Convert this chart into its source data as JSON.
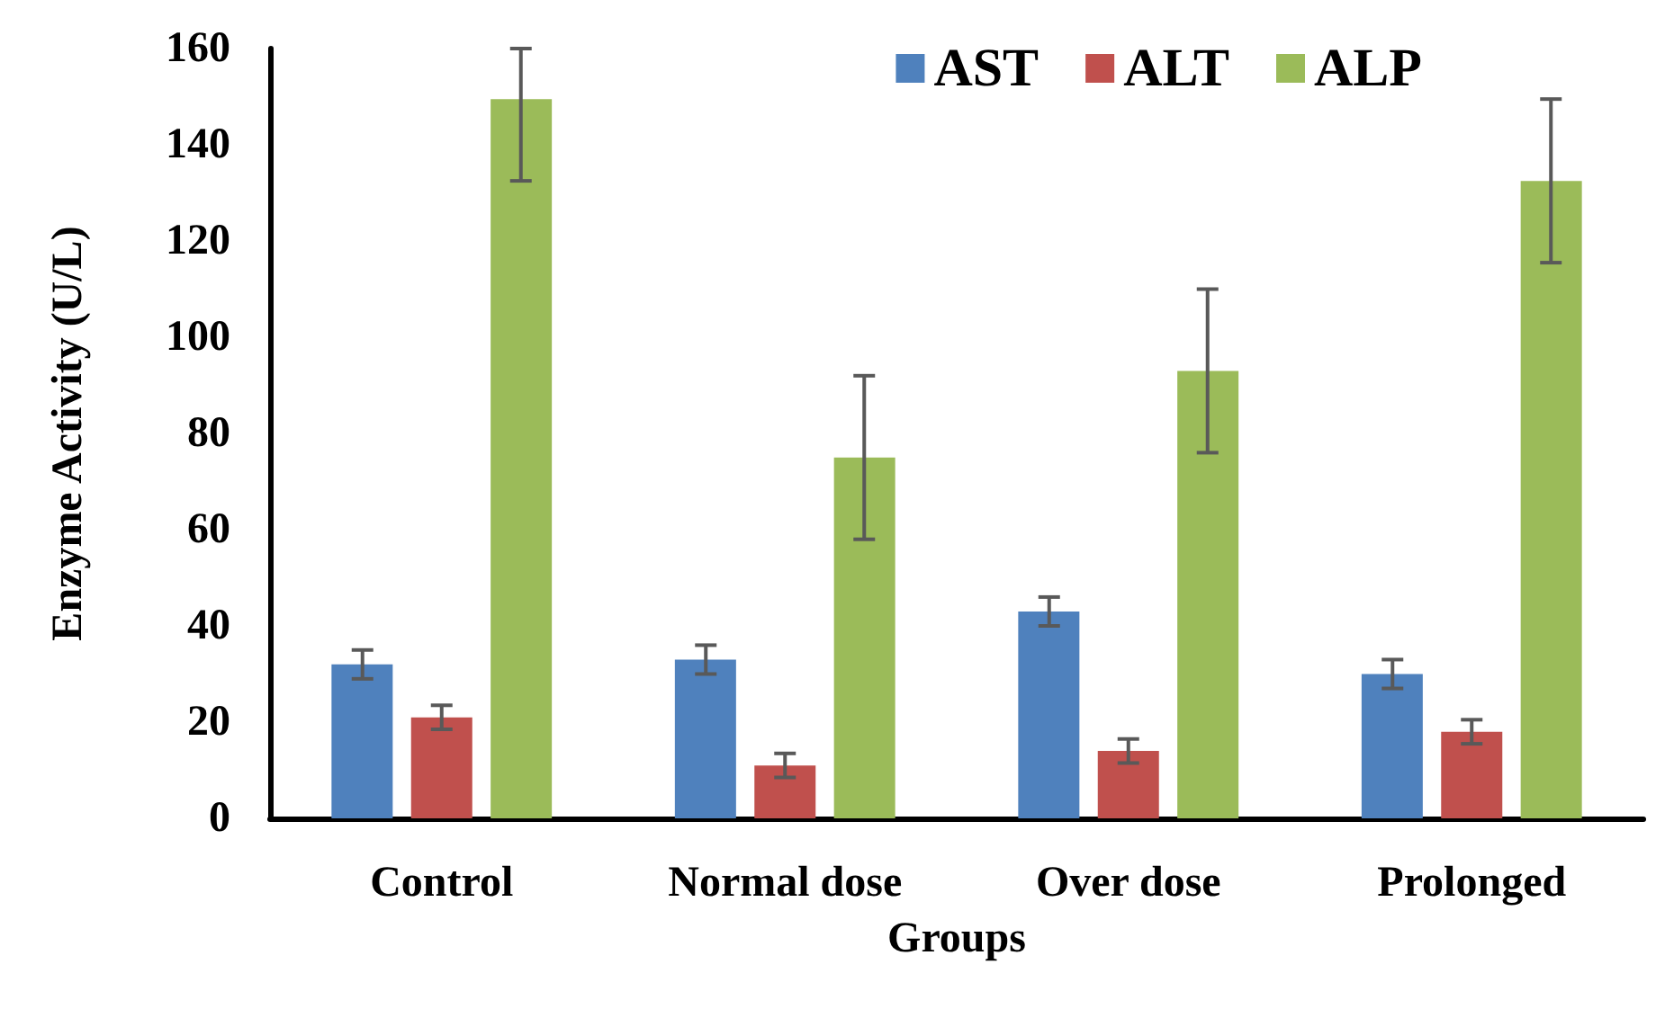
{
  "chart_data": {
    "type": "bar",
    "xlabel": "Groups",
    "ylabel": "Enzyme Activity (U/L)",
    "categories": [
      "Control",
      "Normal dose",
      "Over dose",
      "Prolonged"
    ],
    "series": [
      {
        "name": "AST",
        "color": "#4f81bd",
        "values": [
          32,
          33,
          43,
          30
        ],
        "errors": [
          3,
          3,
          3,
          3
        ]
      },
      {
        "name": "ALT",
        "color": "#c0504d",
        "values": [
          21,
          11,
          14,
          18
        ],
        "errors": [
          2.5,
          2.5,
          2.5,
          2.5
        ]
      },
      {
        "name": "ALP",
        "color": "#9bbb59",
        "values": [
          149.5,
          75,
          93,
          132.5
        ],
        "errors": [
          [
            132.5,
            160
          ],
          17,
          17,
          17
        ]
      }
    ],
    "ylim": [
      0,
      160
    ],
    "yticks": [
      0,
      20,
      40,
      60,
      80,
      100,
      120,
      140,
      160
    ],
    "grid": false,
    "legend": "top right"
  }
}
